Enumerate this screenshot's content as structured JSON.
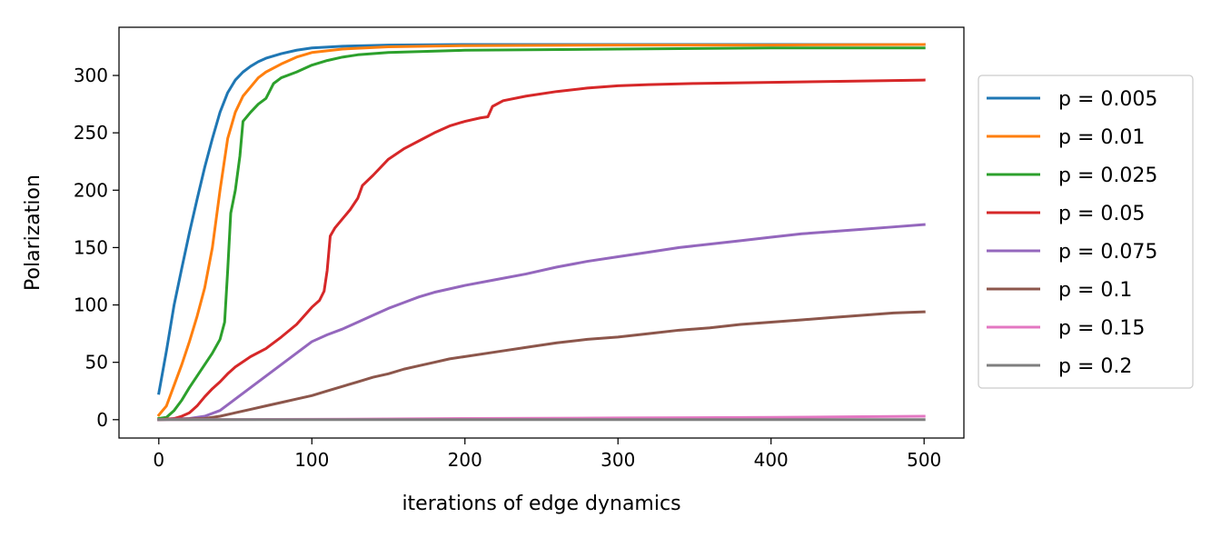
{
  "chart_data": {
    "type": "line",
    "title": "",
    "xlabel": "iterations of edge dynamics",
    "ylabel": "Polarization",
    "xlim": [
      -26,
      526
    ],
    "ylim": [
      -16,
      342
    ],
    "x_ticks": [
      0,
      100,
      200,
      300,
      400,
      500
    ],
    "y_ticks": [
      0,
      50,
      100,
      150,
      200,
      250,
      300
    ],
    "grid": false,
    "legend_position": "right, outside plot",
    "series": [
      {
        "name": "p = 0.005",
        "color": "#1f77b4",
        "points": [
          [
            0,
            23
          ],
          [
            5,
            60
          ],
          [
            10,
            100
          ],
          [
            15,
            132
          ],
          [
            20,
            163
          ],
          [
            25,
            192
          ],
          [
            30,
            220
          ],
          [
            35,
            245
          ],
          [
            40,
            268
          ],
          [
            45,
            285
          ],
          [
            50,
            296
          ],
          [
            55,
            303
          ],
          [
            60,
            308
          ],
          [
            65,
            312
          ],
          [
            70,
            315
          ],
          [
            80,
            319
          ],
          [
            90,
            322
          ],
          [
            100,
            324
          ],
          [
            120,
            325.5
          ],
          [
            150,
            326.5
          ],
          [
            200,
            327
          ],
          [
            300,
            327
          ],
          [
            400,
            327
          ],
          [
            500,
            327
          ]
        ]
      },
      {
        "name": "p = 0.01",
        "color": "#ff7f0e",
        "points": [
          [
            0,
            4
          ],
          [
            5,
            12
          ],
          [
            10,
            30
          ],
          [
            15,
            48
          ],
          [
            20,
            68
          ],
          [
            25,
            90
          ],
          [
            30,
            115
          ],
          [
            35,
            150
          ],
          [
            40,
            200
          ],
          [
            45,
            245
          ],
          [
            50,
            268
          ],
          [
            55,
            282
          ],
          [
            60,
            290
          ],
          [
            65,
            298
          ],
          [
            70,
            303
          ],
          [
            80,
            310
          ],
          [
            90,
            316
          ],
          [
            100,
            320
          ],
          [
            120,
            323
          ],
          [
            150,
            325
          ],
          [
            200,
            326
          ],
          [
            300,
            326.5
          ],
          [
            400,
            326.5
          ],
          [
            500,
            327
          ]
        ]
      },
      {
        "name": "p = 0.025",
        "color": "#2ca02c",
        "points": [
          [
            0,
            1
          ],
          [
            5,
            2
          ],
          [
            10,
            8
          ],
          [
            15,
            17
          ],
          [
            20,
            28
          ],
          [
            25,
            38
          ],
          [
            30,
            48
          ],
          [
            35,
            58
          ],
          [
            40,
            70
          ],
          [
            43,
            85
          ],
          [
            45,
            130
          ],
          [
            47,
            180
          ],
          [
            50,
            200
          ],
          [
            53,
            230
          ],
          [
            55,
            260
          ],
          [
            60,
            268
          ],
          [
            65,
            275
          ],
          [
            70,
            280
          ],
          [
            75,
            293
          ],
          [
            80,
            298
          ],
          [
            90,
            303
          ],
          [
            100,
            309
          ],
          [
            110,
            313
          ],
          [
            120,
            316
          ],
          [
            130,
            318
          ],
          [
            150,
            320
          ],
          [
            200,
            322
          ],
          [
            300,
            323
          ],
          [
            400,
            324
          ],
          [
            500,
            324
          ]
        ]
      },
      {
        "name": "p = 0.05",
        "color": "#d62728",
        "points": [
          [
            0,
            0
          ],
          [
            10,
            1
          ],
          [
            15,
            3
          ],
          [
            20,
            6
          ],
          [
            25,
            12
          ],
          [
            30,
            20
          ],
          [
            35,
            27
          ],
          [
            40,
            33
          ],
          [
            45,
            40
          ],
          [
            50,
            46
          ],
          [
            60,
            55
          ],
          [
            70,
            62
          ],
          [
            80,
            72
          ],
          [
            90,
            83
          ],
          [
            100,
            98
          ],
          [
            105,
            104
          ],
          [
            108,
            112
          ],
          [
            110,
            130
          ],
          [
            112,
            160
          ],
          [
            115,
            167
          ],
          [
            120,
            175
          ],
          [
            125,
            183
          ],
          [
            130,
            193
          ],
          [
            133,
            204
          ],
          [
            140,
            213
          ],
          [
            150,
            227
          ],
          [
            160,
            236
          ],
          [
            170,
            243
          ],
          [
            180,
            250
          ],
          [
            190,
            256
          ],
          [
            200,
            260
          ],
          [
            210,
            263
          ],
          [
            215,
            264
          ],
          [
            218,
            273
          ],
          [
            225,
            278
          ],
          [
            240,
            282
          ],
          [
            260,
            286
          ],
          [
            280,
            289
          ],
          [
            300,
            291
          ],
          [
            320,
            292
          ],
          [
            350,
            293
          ],
          [
            400,
            294
          ],
          [
            450,
            295
          ],
          [
            500,
            296
          ]
        ]
      },
      {
        "name": "p = 0.075",
        "color": "#9467bd",
        "points": [
          [
            0,
            0
          ],
          [
            20,
            1
          ],
          [
            30,
            3
          ],
          [
            40,
            8
          ],
          [
            50,
            18
          ],
          [
            60,
            28
          ],
          [
            70,
            38
          ],
          [
            80,
            48
          ],
          [
            90,
            58
          ],
          [
            100,
            68
          ],
          [
            110,
            74
          ],
          [
            120,
            79
          ],
          [
            130,
            85
          ],
          [
            140,
            91
          ],
          [
            150,
            97
          ],
          [
            160,
            102
          ],
          [
            170,
            107
          ],
          [
            180,
            111
          ],
          [
            190,
            114
          ],
          [
            200,
            117
          ],
          [
            220,
            122
          ],
          [
            240,
            127
          ],
          [
            260,
            133
          ],
          [
            280,
            138
          ],
          [
            300,
            142
          ],
          [
            320,
            146
          ],
          [
            340,
            150
          ],
          [
            360,
            153
          ],
          [
            380,
            156
          ],
          [
            400,
            159
          ],
          [
            420,
            162
          ],
          [
            440,
            164
          ],
          [
            460,
            166
          ],
          [
            480,
            168
          ],
          [
            500,
            170
          ]
        ]
      },
      {
        "name": "p = 0.1",
        "color": "#8c564b",
        "points": [
          [
            0,
            0
          ],
          [
            30,
            1
          ],
          [
            40,
            3
          ],
          [
            50,
            6
          ],
          [
            60,
            9
          ],
          [
            70,
            12
          ],
          [
            80,
            15
          ],
          [
            90,
            18
          ],
          [
            100,
            21
          ],
          [
            110,
            25
          ],
          [
            120,
            29
          ],
          [
            130,
            33
          ],
          [
            140,
            37
          ],
          [
            150,
            40
          ],
          [
            160,
            44
          ],
          [
            170,
            47
          ],
          [
            180,
            50
          ],
          [
            190,
            53
          ],
          [
            200,
            55
          ],
          [
            220,
            59
          ],
          [
            240,
            63
          ],
          [
            260,
            67
          ],
          [
            280,
            70
          ],
          [
            300,
            72
          ],
          [
            320,
            75
          ],
          [
            340,
            78
          ],
          [
            360,
            80
          ],
          [
            380,
            83
          ],
          [
            400,
            85
          ],
          [
            420,
            87
          ],
          [
            440,
            89
          ],
          [
            460,
            91
          ],
          [
            480,
            93
          ],
          [
            500,
            94
          ]
        ]
      },
      {
        "name": "p = 0.15",
        "color": "#e377c2",
        "points": [
          [
            0,
            0
          ],
          [
            100,
            0.3
          ],
          [
            200,
            1
          ],
          [
            300,
            1.5
          ],
          [
            400,
            2
          ],
          [
            450,
            2.5
          ],
          [
            500,
            3
          ]
        ]
      },
      {
        "name": "p = 0.2",
        "color": "#7f7f7f",
        "points": [
          [
            0,
            0
          ],
          [
            100,
            0
          ],
          [
            200,
            0
          ],
          [
            300,
            0
          ],
          [
            400,
            0
          ],
          [
            500,
            0
          ]
        ]
      }
    ]
  }
}
